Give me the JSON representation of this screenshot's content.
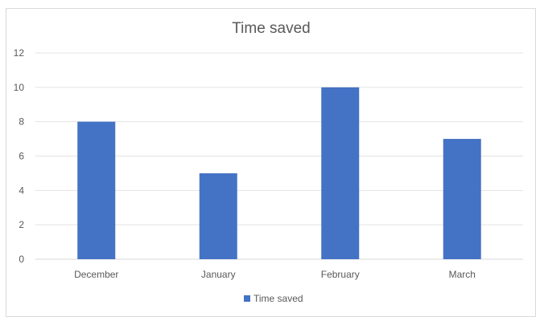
{
  "chart_data": {
    "type": "bar",
    "title": "Time saved",
    "xlabel": "",
    "ylabel": "",
    "categories": [
      "December",
      "January",
      "February",
      "March"
    ],
    "series": [
      {
        "name": "Time saved",
        "values": [
          8,
          5,
          10,
          7
        ],
        "color": "#4472c4"
      }
    ],
    "ylim": [
      0,
      12
    ],
    "yticks": [
      0,
      2,
      4,
      6,
      8,
      10,
      12
    ],
    "grid": true,
    "legend": "bottom"
  }
}
